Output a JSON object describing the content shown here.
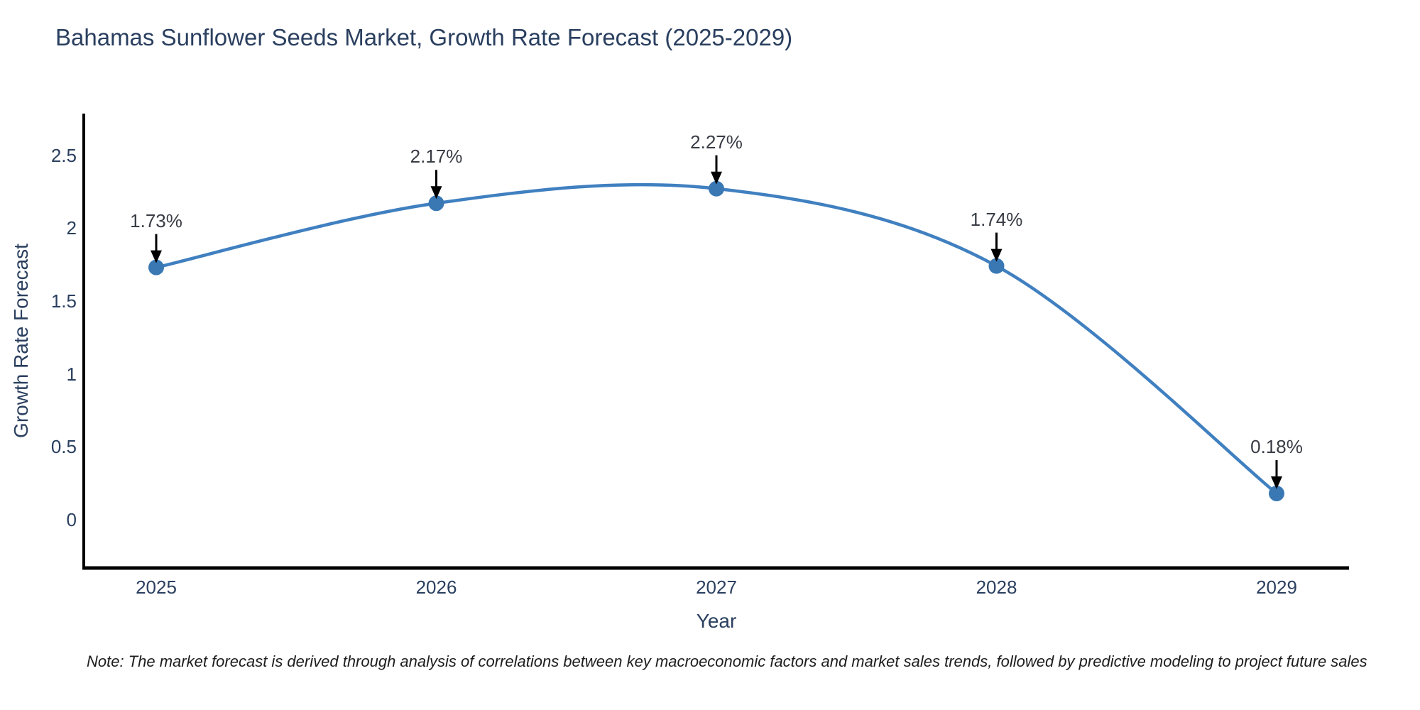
{
  "header": {
    "title": "Bahamas Sunflower Seeds Market, Growth Rate Forecast (2025-2029)"
  },
  "chart_data": {
    "type": "line",
    "title": "Bahamas Sunflower Seeds Market, Growth Rate Forecast (2025-2029)",
    "xlabel": "Year",
    "ylabel": "Growth Rate Forecast",
    "categories": [
      "2025",
      "2026",
      "2027",
      "2028",
      "2029"
    ],
    "series": [
      {
        "name": "Growth Rate Forecast",
        "values": [
          1.73,
          2.17,
          2.27,
          1.74,
          0.18
        ]
      }
    ],
    "point_labels": [
      "1.73%",
      "2.17%",
      "2.27%",
      "1.74%",
      "0.18%"
    ],
    "y_ticks": [
      "0",
      "0.5",
      "1",
      "1.5",
      "2",
      "2.5"
    ],
    "y_tick_values": [
      0,
      0.5,
      1,
      1.5,
      2,
      2.5
    ],
    "ylim": [
      -0.33,
      2.79
    ],
    "line_shape": "spline",
    "grid": false,
    "legend_position": "none",
    "annotation_style": "arrow-down-to-point",
    "colors": {
      "line": "#4080c0",
      "marker": "#3a78b4",
      "arrow": "#000000",
      "axis": "#000000",
      "title_text": "#2a3f5f",
      "tick_text": "#2a3f5f",
      "label_text": "#383c44"
    }
  },
  "footnote": {
    "text": "Note: The market forecast is derived through analysis of correlations between key macroeconomic factors and market sales trends, followed by predictive modeling to project future sales"
  }
}
